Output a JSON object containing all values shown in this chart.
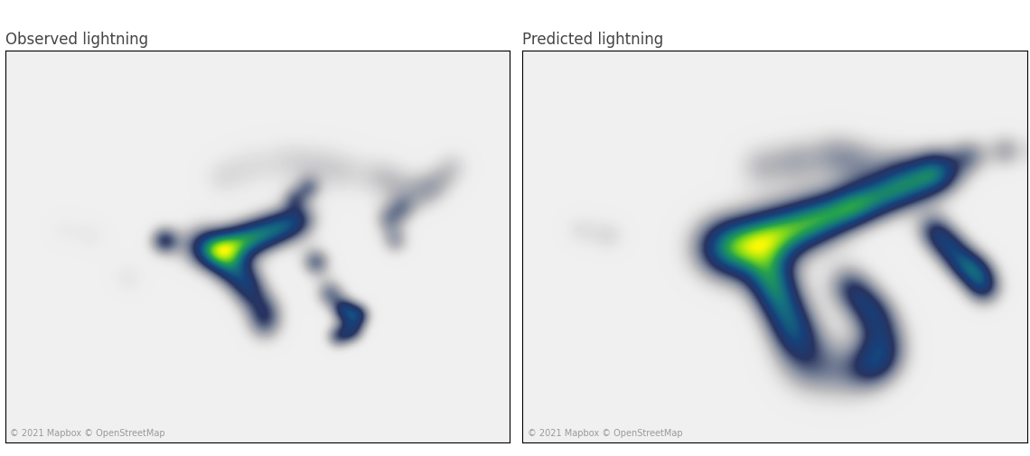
{
  "title_left": "Observed lightning",
  "title_right": "Predicted lightning",
  "footer": "© 2021 Mapbox © OpenStreetMap",
  "bg_color": "#ffffff",
  "map_bg": "#f5f5f5",
  "border_color": "#dddddd",
  "title_color": "#444444",
  "footer_color": "#999999",
  "title_fontsize": 12,
  "footer_fontsize": 7,
  "figsize": [
    11.4,
    5.05
  ],
  "dpi": 100,
  "lon_min": -130,
  "lon_max": -60,
  "lat_min": 18,
  "lat_max": 55,
  "obs_hotspots": [
    {
      "lon": -103,
      "lat": 36.5,
      "intensity": 1.0,
      "sigma_deg": 1.8
    },
    {
      "lon": -101,
      "lat": 36.0,
      "intensity": 0.95,
      "sigma_deg": 1.5
    },
    {
      "lon": -99,
      "lat": 36.5,
      "intensity": 0.85,
      "sigma_deg": 1.5
    },
    {
      "lon": -97,
      "lat": 37.0,
      "intensity": 0.8,
      "sigma_deg": 1.5
    },
    {
      "lon": -95,
      "lat": 37.5,
      "intensity": 0.75,
      "sigma_deg": 1.5
    },
    {
      "lon": -93,
      "lat": 38.0,
      "intensity": 0.7,
      "sigma_deg": 1.5
    },
    {
      "lon": -91,
      "lat": 38.5,
      "intensity": 0.65,
      "sigma_deg": 1.5
    },
    {
      "lon": -89,
      "lat": 39.0,
      "intensity": 0.6,
      "sigma_deg": 1.5
    },
    {
      "lon": -99,
      "lat": 34.5,
      "intensity": 0.75,
      "sigma_deg": 1.5
    },
    {
      "lon": -97,
      "lat": 33.5,
      "intensity": 0.65,
      "sigma_deg": 1.5
    },
    {
      "lon": -96,
      "lat": 32.0,
      "intensity": 0.6,
      "sigma_deg": 1.5
    },
    {
      "lon": -94,
      "lat": 30.5,
      "intensity": 0.55,
      "sigma_deg": 1.5
    },
    {
      "lon": -94,
      "lat": 29.0,
      "intensity": 0.5,
      "sigma_deg": 1.5
    },
    {
      "lon": -108,
      "lat": 37.0,
      "intensity": 0.55,
      "sigma_deg": 1.2
    },
    {
      "lon": -87,
      "lat": 35.0,
      "intensity": 0.45,
      "sigma_deg": 1.2
    },
    {
      "lon": -85,
      "lat": 32.0,
      "intensity": 0.42,
      "sigma_deg": 1.2
    },
    {
      "lon": -83,
      "lat": 30.5,
      "intensity": 0.4,
      "sigma_deg": 1.0
    },
    {
      "lon": -81,
      "lat": 30.0,
      "intensity": 0.38,
      "sigma_deg": 1.0
    },
    {
      "lon": -82,
      "lat": 28.5,
      "intensity": 0.35,
      "sigma_deg": 1.0
    },
    {
      "lon": -84,
      "lat": 28.0,
      "intensity": 0.3,
      "sigma_deg": 1.0
    },
    {
      "lon": -100,
      "lat": 43.0,
      "intensity": 0.28,
      "sigma_deg": 1.8
    },
    {
      "lon": -96,
      "lat": 44.0,
      "intensity": 0.32,
      "sigma_deg": 2.0
    },
    {
      "lon": -91,
      "lat": 44.5,
      "intensity": 0.35,
      "sigma_deg": 2.0
    },
    {
      "lon": -87,
      "lat": 44.0,
      "intensity": 0.38,
      "sigma_deg": 2.0
    },
    {
      "lon": -83,
      "lat": 43.5,
      "intensity": 0.4,
      "sigma_deg": 2.0
    },
    {
      "lon": -78,
      "lat": 43.0,
      "intensity": 0.38,
      "sigma_deg": 1.8
    },
    {
      "lon": -75,
      "lat": 42.0,
      "intensity": 0.35,
      "sigma_deg": 1.8
    },
    {
      "lon": -72,
      "lat": 41.5,
      "intensity": 0.32,
      "sigma_deg": 1.5
    },
    {
      "lon": -70,
      "lat": 42.5,
      "intensity": 0.28,
      "sigma_deg": 1.5
    },
    {
      "lon": -68,
      "lat": 44.0,
      "intensity": 0.25,
      "sigma_deg": 1.5
    },
    {
      "lon": -76,
      "lat": 37.0,
      "intensity": 0.3,
      "sigma_deg": 1.2
    },
    {
      "lon": -77,
      "lat": 39.0,
      "intensity": 0.3,
      "sigma_deg": 1.2
    },
    {
      "lon": -75,
      "lat": 40.0,
      "intensity": 0.28,
      "sigma_deg": 1.2
    },
    {
      "lon": -113,
      "lat": 33.5,
      "intensity": 0.15,
      "sigma_deg": 1.5
    },
    {
      "lon": -118,
      "lat": 37.5,
      "intensity": 0.12,
      "sigma_deg": 1.5
    },
    {
      "lon": -122,
      "lat": 38.0,
      "intensity": 0.1,
      "sigma_deg": 1.5
    },
    {
      "lon": -88,
      "lat": 42.0,
      "intensity": 0.22,
      "sigma_deg": 1.0
    },
    {
      "lon": -90,
      "lat": 41.0,
      "intensity": 0.22,
      "sigma_deg": 1.0
    }
  ],
  "pred_hotspots": [
    {
      "lon": -103,
      "lat": 36.5,
      "intensity": 1.0,
      "sigma_deg": 2.5
    },
    {
      "lon": -101,
      "lat": 36.0,
      "intensity": 0.95,
      "sigma_deg": 2.5
    },
    {
      "lon": -99,
      "lat": 36.5,
      "intensity": 0.9,
      "sigma_deg": 2.5
    },
    {
      "lon": -97,
      "lat": 37.0,
      "intensity": 0.85,
      "sigma_deg": 2.3
    },
    {
      "lon": -95,
      "lat": 37.5,
      "intensity": 0.8,
      "sigma_deg": 2.3
    },
    {
      "lon": -93,
      "lat": 38.0,
      "intensity": 0.75,
      "sigma_deg": 2.2
    },
    {
      "lon": -91,
      "lat": 38.5,
      "intensity": 0.7,
      "sigma_deg": 2.2
    },
    {
      "lon": -89,
      "lat": 39.0,
      "intensity": 0.65,
      "sigma_deg": 2.0
    },
    {
      "lon": -87,
      "lat": 39.5,
      "intensity": 0.6,
      "sigma_deg": 2.0
    },
    {
      "lon": -85,
      "lat": 40.0,
      "intensity": 0.55,
      "sigma_deg": 1.8
    },
    {
      "lon": -83,
      "lat": 40.5,
      "intensity": 0.52,
      "sigma_deg": 1.8
    },
    {
      "lon": -81,
      "lat": 41.0,
      "intensity": 0.5,
      "sigma_deg": 1.8
    },
    {
      "lon": -79,
      "lat": 41.5,
      "intensity": 0.48,
      "sigma_deg": 1.8
    },
    {
      "lon": -77,
      "lat": 42.0,
      "intensity": 0.45,
      "sigma_deg": 1.8
    },
    {
      "lon": -75,
      "lat": 42.5,
      "intensity": 0.42,
      "sigma_deg": 1.8
    },
    {
      "lon": -73,
      "lat": 43.0,
      "intensity": 0.4,
      "sigma_deg": 1.8
    },
    {
      "lon": -71,
      "lat": 43.5,
      "intensity": 0.38,
      "sigma_deg": 1.8
    },
    {
      "lon": -96,
      "lat": 34.0,
      "intensity": 0.7,
      "sigma_deg": 2.0
    },
    {
      "lon": -95,
      "lat": 32.5,
      "intensity": 0.65,
      "sigma_deg": 2.0
    },
    {
      "lon": -94,
      "lat": 31.0,
      "intensity": 0.6,
      "sigma_deg": 2.0
    },
    {
      "lon": -93,
      "lat": 29.5,
      "intensity": 0.55,
      "sigma_deg": 2.0
    },
    {
      "lon": -92,
      "lat": 28.0,
      "intensity": 0.5,
      "sigma_deg": 2.0
    },
    {
      "lon": -91,
      "lat": 26.5,
      "intensity": 0.55,
      "sigma_deg": 2.5
    },
    {
      "lon": -90,
      "lat": 25.0,
      "intensity": 0.6,
      "sigma_deg": 2.5
    },
    {
      "lon": -85,
      "lat": 24.5,
      "intensity": 0.55,
      "sigma_deg": 2.5
    },
    {
      "lon": -82,
      "lat": 25.0,
      "intensity": 0.5,
      "sigma_deg": 2.0
    },
    {
      "lon": -80,
      "lat": 26.0,
      "intensity": 0.55,
      "sigma_deg": 2.0
    },
    {
      "lon": -80,
      "lat": 28.0,
      "intensity": 0.55,
      "sigma_deg": 2.0
    },
    {
      "lon": -81,
      "lat": 30.0,
      "intensity": 0.5,
      "sigma_deg": 1.8
    },
    {
      "lon": -83,
      "lat": 31.5,
      "intensity": 0.48,
      "sigma_deg": 1.8
    },
    {
      "lon": -85,
      "lat": 33.0,
      "intensity": 0.45,
      "sigma_deg": 1.8
    },
    {
      "lon": -73,
      "lat": 38.0,
      "intensity": 0.42,
      "sigma_deg": 1.5
    },
    {
      "lon": -71,
      "lat": 36.5,
      "intensity": 0.45,
      "sigma_deg": 1.5
    },
    {
      "lon": -69,
      "lat": 35.0,
      "intensity": 0.48,
      "sigma_deg": 1.5
    },
    {
      "lon": -67,
      "lat": 34.0,
      "intensity": 0.45,
      "sigma_deg": 1.5
    },
    {
      "lon": -66,
      "lat": 32.5,
      "intensity": 0.42,
      "sigma_deg": 1.5
    },
    {
      "lon": -97,
      "lat": 44.0,
      "intensity": 0.35,
      "sigma_deg": 2.0
    },
    {
      "lon": -92,
      "lat": 44.5,
      "intensity": 0.4,
      "sigma_deg": 2.0
    },
    {
      "lon": -87,
      "lat": 45.0,
      "intensity": 0.42,
      "sigma_deg": 2.0
    },
    {
      "lon": -83,
      "lat": 44.5,
      "intensity": 0.4,
      "sigma_deg": 2.0
    },
    {
      "lon": -78,
      "lat": 44.0,
      "intensity": 0.38,
      "sigma_deg": 2.0
    },
    {
      "lon": -73,
      "lat": 44.0,
      "intensity": 0.35,
      "sigma_deg": 1.8
    },
    {
      "lon": -68,
      "lat": 45.0,
      "intensity": 0.3,
      "sigma_deg": 1.5
    },
    {
      "lon": -63,
      "lat": 45.5,
      "intensity": 0.25,
      "sigma_deg": 1.5
    },
    {
      "lon": -118,
      "lat": 37.5,
      "intensity": 0.12,
      "sigma_deg": 1.5
    },
    {
      "lon": -122,
      "lat": 38.0,
      "intensity": 0.1,
      "sigma_deg": 1.5
    }
  ]
}
